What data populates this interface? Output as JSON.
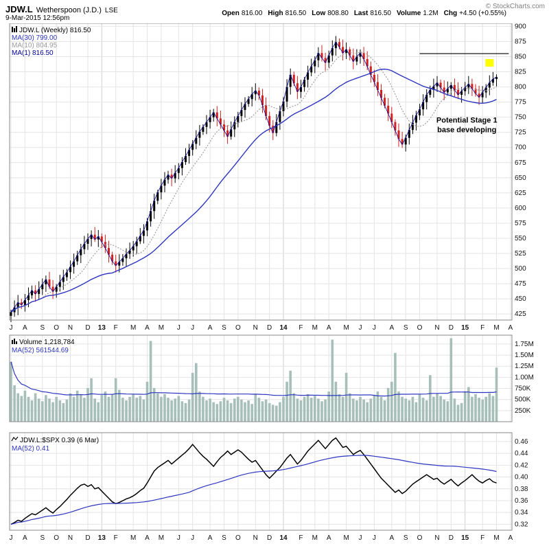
{
  "header": {
    "symbol": "JDW.L",
    "company": "Wetherspoon (J.D.)",
    "exchange": "LSE",
    "datetime": "9-Mar-2015 12:56pm",
    "copyright": "© StockCharts.com",
    "quote": [
      {
        "label": "Open",
        "value": "816.00"
      },
      {
        "label": "High",
        "value": "816.50"
      },
      {
        "label": "Low",
        "value": "808.80"
      },
      {
        "label": "Last",
        "value": "816.50"
      },
      {
        "label": "Volume",
        "value": "1.2M"
      },
      {
        "label": "Chg",
        "value": "+4.50 (+0.55%)"
      }
    ]
  },
  "colors": {
    "grid": "#e4e4e4",
    "grid_year": "#cfcfcf",
    "border": "#888888",
    "candle_up": "#000000",
    "candle_down": "#d02020",
    "ma_blue": "#2c35c0",
    "ma10": "#a0a0a0",
    "ma1": "#000099",
    "volume_bar": "#a6bfb9",
    "ratio_line": "#000000",
    "annotation": "#000000",
    "highlight": "#ffff00"
  },
  "x_axis": {
    "labels": [
      "J",
      "A",
      "S",
      "O",
      "N",
      "D",
      "13",
      "F",
      "M",
      "A",
      "M",
      "J",
      "J",
      "A",
      "S",
      "O",
      "N",
      "D",
      "14",
      "F",
      "M",
      "A",
      "M",
      "J",
      "J",
      "A",
      "S",
      "O",
      "N",
      "D",
      "15",
      "F",
      "M",
      "A"
    ],
    "positions": [
      0,
      4,
      9,
      13,
      17,
      22,
      26,
      30,
      35,
      39,
      43,
      48,
      52,
      57,
      61,
      65,
      70,
      74,
      78,
      83,
      87,
      91,
      96,
      100,
      104,
      109,
      113,
      117,
      122,
      126,
      130,
      135,
      139,
      143
    ],
    "year_indices": [
      6,
      18,
      30
    ]
  },
  "chart_data": [
    {
      "type": "candlestick",
      "title": "JDW.L (Weekly) 816.50",
      "legend": [
        {
          "label": "JDW.L (Weekly) 816.50",
          "color": "#000000"
        },
        {
          "label": "MA(30) 799.00",
          "color": "#2c35c0"
        },
        {
          "label": "MA(10) 804.95",
          "color": "#9a9a9a"
        },
        {
          "label": "MA(1) 816.50",
          "color": "#000099"
        }
      ],
      "ylim": [
        415,
        905
      ],
      "y_ticks": [
        425,
        450,
        475,
        500,
        525,
        550,
        575,
        600,
        625,
        650,
        675,
        700,
        725,
        750,
        775,
        800,
        825,
        850,
        875,
        900
      ],
      "ma_windows": [
        30,
        10,
        1
      ],
      "weekly_close": [
        428,
        436,
        444,
        440,
        448,
        456,
        464,
        458,
        466,
        474,
        482,
        470,
        462,
        470,
        478,
        486,
        494,
        503,
        512,
        522,
        532,
        541,
        549,
        556,
        548,
        553,
        544,
        534,
        523,
        512,
        505,
        511,
        517,
        524,
        530,
        537,
        545,
        554,
        563,
        578,
        595,
        612,
        626,
        637,
        647,
        655,
        649,
        658,
        666,
        676,
        686,
        696,
        706,
        716,
        726,
        734,
        742,
        750,
        758,
        748,
        738,
        728,
        718,
        730,
        742,
        752,
        762,
        772,
        780,
        788,
        794,
        786,
        770,
        752,
        736,
        724,
        742,
        760,
        776,
        800,
        820,
        806,
        792,
        800,
        812,
        824,
        834,
        844,
        856,
        848,
        840,
        852,
        864,
        874,
        866,
        856,
        862,
        852,
        842,
        850,
        856,
        846,
        834,
        820,
        808,
        795,
        782,
        769,
        756,
        742,
        728,
        714,
        705,
        716,
        729,
        741,
        753,
        763,
        775,
        787,
        795,
        801,
        807,
        799,
        791,
        797,
        803,
        795,
        787,
        793,
        799,
        805,
        797,
        789,
        783,
        791,
        799,
        807,
        813,
        816.5
      ],
      "annotations": {
        "hline": {
          "price": 855,
          "from_week": 117,
          "to_week": 142.5
        },
        "text": {
          "lines": [
            "Potential Stage 1",
            "base developing"
          ],
          "week": 130.5,
          "price": 741
        },
        "highlight": {
          "week": 137,
          "price": 846,
          "color": "#ffff00"
        }
      }
    },
    {
      "type": "bar",
      "title": "Volume 1,218,784",
      "legend": [
        {
          "label": "Volume 1,218,784",
          "color": "#000000"
        },
        {
          "label": "MA(52) 561544.69",
          "color": "#2c35c0"
        }
      ],
      "ylim": [
        0,
        1950
      ],
      "y_ticks": [
        250,
        500,
        750,
        1000,
        1250,
        1500,
        1750
      ],
      "y_tick_labels": [
        "250K",
        "500K",
        "750K",
        "1.00M",
        "1.25M",
        "1.50M",
        "1.75M"
      ],
      "ma_window": 52,
      "values_thousands": [
        1350,
        820,
        640,
        580,
        700,
        560,
        480,
        640,
        520,
        460,
        600,
        520,
        440,
        560,
        480,
        420,
        500,
        640,
        560,
        700,
        620,
        540,
        760,
        980,
        520,
        440,
        600,
        680,
        560,
        620,
        980,
        720,
        540,
        480,
        560,
        620,
        540,
        580,
        500,
        900,
        1820,
        760,
        640,
        560,
        620,
        540,
        480,
        520,
        580,
        460,
        420,
        500,
        1100,
        1320,
        680,
        560,
        480,
        520,
        440,
        400,
        460,
        540,
        480,
        420,
        520,
        560,
        500,
        440,
        480,
        400,
        620,
        540,
        460,
        500,
        420,
        380,
        360,
        440,
        560,
        900,
        1150,
        640,
        520,
        480,
        560,
        620,
        540,
        580,
        520,
        460,
        500,
        680,
        1850,
        900,
        620,
        560,
        1100,
        640,
        520,
        480,
        560,
        500,
        440,
        520,
        600,
        680,
        560,
        480,
        760,
        900,
        1550,
        680,
        560,
        520,
        480,
        560,
        440,
        620,
        540,
        480,
        1050,
        560,
        640,
        580,
        500,
        460,
        1880,
        520,
        380,
        420,
        680,
        780,
        560,
        620,
        540,
        500,
        560,
        640,
        580,
        1219
      ]
    },
    {
      "type": "line",
      "title": "JDW.L:$SPX 0.39 (6 Mar)",
      "legend": [
        {
          "label": "JDW.L:$SPX 0.39 (6 Mar)",
          "color": "#000000"
        },
        {
          "label": "MA(52) 0.41",
          "color": "#2c35c0"
        }
      ],
      "ylim": [
        0.31,
        0.475
      ],
      "y_ticks": [
        0.32,
        0.34,
        0.36,
        0.38,
        0.4,
        0.42,
        0.44,
        0.46
      ],
      "ma_window": 52,
      "values": [
        0.32,
        0.323,
        0.327,
        0.325,
        0.33,
        0.334,
        0.338,
        0.336,
        0.34,
        0.344,
        0.348,
        0.343,
        0.339,
        0.345,
        0.35,
        0.356,
        0.362,
        0.369,
        0.375,
        0.381,
        0.386,
        0.388,
        0.384,
        0.387,
        0.38,
        0.382,
        0.376,
        0.37,
        0.364,
        0.358,
        0.355,
        0.357,
        0.36,
        0.363,
        0.365,
        0.368,
        0.372,
        0.377,
        0.381,
        0.39,
        0.4,
        0.41,
        0.416,
        0.42,
        0.424,
        0.428,
        0.422,
        0.427,
        0.432,
        0.437,
        0.442,
        0.448,
        0.455,
        0.448,
        0.441,
        0.435,
        0.43,
        0.424,
        0.418,
        0.426,
        0.433,
        0.438,
        0.444,
        0.438,
        0.442,
        0.446,
        0.442,
        0.436,
        0.43,
        0.425,
        0.428,
        0.42,
        0.412,
        0.404,
        0.398,
        0.404,
        0.41,
        0.416,
        0.424,
        0.432,
        0.438,
        0.43,
        0.422,
        0.428,
        0.436,
        0.444,
        0.45,
        0.456,
        0.462,
        0.455,
        0.448,
        0.455,
        0.462,
        0.466,
        0.458,
        0.45,
        0.452,
        0.445,
        0.438,
        0.442,
        0.445,
        0.438,
        0.43,
        0.422,
        0.414,
        0.406,
        0.398,
        0.392,
        0.386,
        0.38,
        0.374,
        0.378,
        0.372,
        0.376,
        0.382,
        0.388,
        0.392,
        0.396,
        0.4,
        0.404,
        0.4,
        0.396,
        0.398,
        0.392,
        0.388,
        0.392,
        0.396,
        0.39,
        0.385,
        0.39,
        0.394,
        0.399,
        0.404,
        0.398,
        0.393,
        0.39,
        0.394,
        0.397,
        0.392,
        0.39
      ]
    }
  ]
}
